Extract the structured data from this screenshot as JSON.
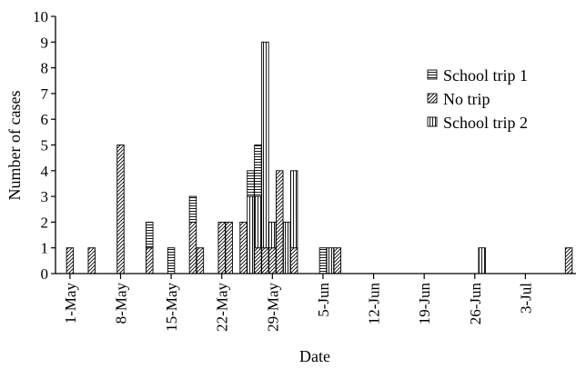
{
  "chart_data": {
    "type": "bar",
    "stacked": true,
    "title": "",
    "xlabel": "Date",
    "ylabel": "Number of cases",
    "ylim": [
      0,
      10
    ],
    "yticks": [
      0,
      1,
      2,
      3,
      4,
      5,
      6,
      7,
      8,
      9,
      10
    ],
    "xlim": [
      "2005-04-29",
      "2005-07-10"
    ],
    "xtick_dates": [
      "2005-05-01",
      "2005-05-08",
      "2005-05-15",
      "2005-05-22",
      "2005-05-29",
      "2005-06-05",
      "2005-06-12",
      "2005-06-19",
      "2005-06-26",
      "2005-07-03"
    ],
    "xtick_labels": [
      "1-May",
      "8-May",
      "15-May",
      "22-May",
      "29-May",
      "5-Jun",
      "12-Jun",
      "19-Jun",
      "26-Jun",
      "3-Jul"
    ],
    "legend_position": "top-right",
    "series": [
      {
        "name": "School trip 1",
        "pattern": "horizontal-hatch"
      },
      {
        "name": "No trip",
        "pattern": "diagonal-hatch"
      },
      {
        "name": "School trip 2",
        "pattern": "vertical-hatch"
      }
    ],
    "bars": [
      {
        "date": "2005-05-01",
        "School trip 1": 0,
        "No trip": 1,
        "School trip 2": 0
      },
      {
        "date": "2005-05-04",
        "School trip 1": 0,
        "No trip": 1,
        "School trip 2": 0
      },
      {
        "date": "2005-05-08",
        "School trip 1": 0,
        "No trip": 5,
        "School trip 2": 0
      },
      {
        "date": "2005-05-12",
        "School trip 1": 1,
        "No trip": 1,
        "School trip 2": 0
      },
      {
        "date": "2005-05-15",
        "School trip 1": 1,
        "No trip": 0,
        "School trip 2": 0
      },
      {
        "date": "2005-05-18",
        "School trip 1": 1,
        "No trip": 2,
        "School trip 2": 0
      },
      {
        "date": "2005-05-19",
        "School trip 1": 0,
        "No trip": 1,
        "School trip 2": 0
      },
      {
        "date": "2005-05-22",
        "School trip 1": 0,
        "No trip": 2,
        "School trip 2": 0
      },
      {
        "date": "2005-05-23",
        "School trip 1": 0,
        "No trip": 2,
        "School trip 2": 0
      },
      {
        "date": "2005-05-25",
        "School trip 1": 0,
        "No trip": 2,
        "School trip 2": 0
      },
      {
        "date": "2005-05-26",
        "School trip 1": 1,
        "No trip": 0,
        "School trip 2": 3
      },
      {
        "date": "2005-05-27",
        "School trip 1": 2,
        "No trip": 1,
        "School trip 2": 2
      },
      {
        "date": "2005-05-28",
        "School trip 1": 0,
        "No trip": 1,
        "School trip 2": 8
      },
      {
        "date": "2005-05-29",
        "School trip 1": 0,
        "No trip": 1,
        "School trip 2": 1
      },
      {
        "date": "2005-05-30",
        "School trip 1": 0,
        "No trip": 4,
        "School trip 2": 0
      },
      {
        "date": "2005-05-31",
        "School trip 1": 0,
        "No trip": 0,
        "School trip 2": 2
      },
      {
        "date": "2005-06-01",
        "School trip 1": 0,
        "No trip": 1,
        "School trip 2": 3
      },
      {
        "date": "2005-06-05",
        "School trip 1": 1,
        "No trip": 0,
        "School trip 2": 0
      },
      {
        "date": "2005-06-06",
        "School trip 1": 0,
        "No trip": 0,
        "School trip 2": 1
      },
      {
        "date": "2005-06-07",
        "School trip 1": 0,
        "No trip": 1,
        "School trip 2": 0
      },
      {
        "date": "2005-06-27",
        "School trip 1": 0,
        "No trip": 0,
        "School trip 2": 1
      },
      {
        "date": "2005-07-09",
        "School trip 1": 0,
        "No trip": 1,
        "School trip 2": 0
      }
    ]
  }
}
